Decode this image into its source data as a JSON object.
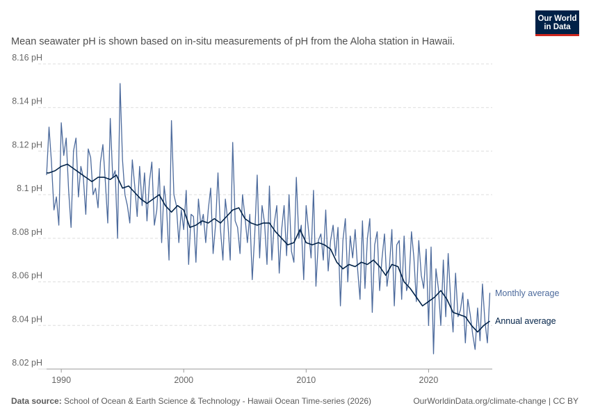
{
  "logo": {
    "line1": "Our World",
    "line2": "in Data"
  },
  "subtitle": "Mean seawater pH is shown based on in-situ measurements of pH from the Aloha station in Hawaii.",
  "footer": {
    "source_label": "Data source:",
    "source_text": "School of Ocean & Earth Science & Technology - Hawaii Ocean Time-series (2026)",
    "url_license": "OurWorldinData.org/climate-change | CC BY"
  },
  "colors": {
    "monthly": "#4c6a9c",
    "annual": "#002147",
    "grid": "#dddddd"
  },
  "chart_data": {
    "type": "line",
    "xlim": [
      1988.8,
      2025.2
    ],
    "ylim": [
      8.02,
      8.16
    ],
    "y_ticks": [
      8.02,
      8.04,
      8.06,
      8.08,
      8.1,
      8.12,
      8.14,
      8.16
    ],
    "y_tick_labels": [
      "8.02 pH",
      "8.04 pH",
      "8.06 pH",
      "8.08 pH",
      "8.1 pH",
      "8.12 pH",
      "8.14 pH",
      "8.16 pH"
    ],
    "x_ticks": [
      1990,
      2000,
      2010,
      2020
    ],
    "x_tick_labels": [
      "1990",
      "2000",
      "2010",
      "2020"
    ],
    "grid": "horizontal dashed",
    "series": [
      {
        "name": "Monthly average",
        "x": [
          1988.8,
          1989.0,
          1989.2,
          1989.4,
          1989.6,
          1989.8,
          1990.0,
          1990.2,
          1990.4,
          1990.6,
          1990.8,
          1991.0,
          1991.2,
          1991.4,
          1991.6,
          1991.8,
          1992.0,
          1992.2,
          1992.4,
          1992.6,
          1992.8,
          1993.0,
          1993.2,
          1993.4,
          1993.6,
          1993.8,
          1994.0,
          1994.2,
          1994.4,
          1994.6,
          1994.8,
          1995.0,
          1995.2,
          1995.4,
          1995.6,
          1995.8,
          1996.0,
          1996.2,
          1996.4,
          1996.6,
          1996.8,
          1997.0,
          1997.2,
          1997.4,
          1997.6,
          1997.8,
          1998.0,
          1998.2,
          1998.4,
          1998.6,
          1998.8,
          1999.0,
          1999.2,
          1999.4,
          1999.6,
          1999.8,
          2000.0,
          2000.2,
          2000.4,
          2000.6,
          2000.8,
          2001.0,
          2001.2,
          2001.4,
          2001.6,
          2001.8,
          2002.0,
          2002.2,
          2002.4,
          2002.6,
          2002.8,
          2003.0,
          2003.2,
          2003.4,
          2003.6,
          2003.8,
          2004.0,
          2004.2,
          2004.4,
          2004.6,
          2004.8,
          2005.0,
          2005.2,
          2005.4,
          2005.6,
          2005.8,
          2006.0,
          2006.2,
          2006.4,
          2006.6,
          2006.8,
          2007.0,
          2007.2,
          2007.4,
          2007.6,
          2007.8,
          2008.0,
          2008.2,
          2008.4,
          2008.6,
          2008.8,
          2009.0,
          2009.2,
          2009.4,
          2009.6,
          2009.8,
          2010.0,
          2010.2,
          2010.4,
          2010.6,
          2010.8,
          2011.0,
          2011.2,
          2011.4,
          2011.6,
          2011.8,
          2012.0,
          2012.2,
          2012.4,
          2012.6,
          2012.8,
          2013.0,
          2013.2,
          2013.4,
          2013.6,
          2013.8,
          2014.0,
          2014.2,
          2014.4,
          2014.6,
          2014.8,
          2015.0,
          2015.2,
          2015.4,
          2015.6,
          2015.8,
          2016.0,
          2016.2,
          2016.4,
          2016.6,
          2016.8,
          2017.0,
          2017.2,
          2017.4,
          2017.6,
          2017.8,
          2018.0,
          2018.2,
          2018.4,
          2018.6,
          2018.8,
          2019.0,
          2019.2,
          2019.4,
          2019.6,
          2019.8,
          2020.0,
          2020.2,
          2020.4,
          2020.6,
          2020.8,
          2021.0,
          2021.2,
          2021.4,
          2021.6,
          2021.8,
          2022.0,
          2022.2,
          2022.4,
          2022.6,
          2022.8,
          2023.0,
          2023.2,
          2023.4,
          2023.6,
          2023.8,
          2024.0,
          2024.2,
          2024.4,
          2024.6,
          2024.8,
          2025.0
        ],
        "y": [
          8.109,
          8.131,
          8.115,
          8.093,
          8.099,
          8.086,
          8.133,
          8.118,
          8.126,
          8.102,
          8.085,
          8.12,
          8.126,
          8.099,
          8.113,
          8.108,
          8.091,
          8.121,
          8.117,
          8.1,
          8.103,
          8.094,
          8.115,
          8.123,
          8.106,
          8.087,
          8.135,
          8.108,
          8.111,
          8.08,
          8.151,
          8.116,
          8.1,
          8.095,
          8.087,
          8.116,
          8.104,
          8.09,
          8.113,
          8.095,
          8.11,
          8.088,
          8.106,
          8.115,
          8.086,
          8.093,
          8.112,
          8.078,
          8.104,
          8.094,
          8.07,
          8.134,
          8.1,
          8.095,
          8.078,
          8.093,
          8.084,
          8.102,
          8.068,
          8.091,
          8.09,
          8.069,
          8.098,
          8.086,
          8.091,
          8.078,
          8.093,
          8.103,
          8.073,
          8.086,
          8.11,
          8.084,
          8.07,
          8.098,
          8.088,
          8.07,
          8.124,
          8.088,
          8.085,
          8.073,
          8.1,
          8.09,
          8.078,
          8.091,
          8.061,
          8.082,
          8.109,
          8.071,
          8.095,
          8.087,
          8.068,
          8.104,
          8.07,
          8.087,
          8.095,
          8.064,
          8.084,
          8.095,
          8.072,
          8.1,
          8.074,
          8.069,
          8.108,
          8.08,
          8.086,
          8.061,
          8.095,
          8.083,
          8.071,
          8.102,
          8.058,
          8.079,
          8.082,
          8.07,
          8.093,
          8.065,
          8.079,
          8.086,
          8.072,
          8.085,
          8.049,
          8.079,
          8.089,
          8.06,
          8.081,
          8.071,
          8.084,
          8.066,
          8.052,
          8.088,
          8.057,
          8.08,
          8.089,
          8.046,
          8.077,
          8.083,
          8.056,
          8.071,
          8.082,
          8.058,
          8.067,
          8.084,
          8.049,
          8.077,
          8.079,
          8.052,
          8.081,
          8.056,
          8.06,
          8.083,
          8.071,
          8.051,
          8.079,
          8.063,
          8.057,
          8.075,
          8.04,
          8.076,
          8.027,
          8.066,
          8.057,
          8.04,
          8.07,
          8.044,
          8.073,
          8.052,
          8.037,
          8.064,
          8.044,
          8.047,
          8.055,
          8.032,
          8.052,
          8.045,
          8.036,
          8.029,
          8.048,
          8.033,
          8.059,
          8.042,
          8.032,
          8.055
        ]
      },
      {
        "name": "Annual average",
        "x": [
          1988.8,
          1989.0,
          1989.5,
          1990.0,
          1990.5,
          1991.0,
          1991.5,
          1992.0,
          1992.5,
          1993.0,
          1993.5,
          1994.0,
          1994.5,
          1995.0,
          1995.5,
          1996.0,
          1996.5,
          1997.0,
          1997.5,
          1998.0,
          1998.5,
          1999.0,
          1999.5,
          2000.0,
          2000.5,
          2001.0,
          2001.5,
          2002.0,
          2002.5,
          2003.0,
          2003.5,
          2004.0,
          2004.5,
          2005.0,
          2005.5,
          2006.0,
          2006.5,
          2007.0,
          2007.5,
          2008.0,
          2008.5,
          2009.0,
          2009.5,
          2010.0,
          2010.5,
          2011.0,
          2011.5,
          2012.0,
          2012.5,
          2013.0,
          2013.5,
          2014.0,
          2014.5,
          2015.0,
          2015.5,
          2016.0,
          2016.5,
          2017.0,
          2017.5,
          2018.0,
          2018.5,
          2019.0,
          2019.5,
          2020.0,
          2020.5,
          2021.0,
          2021.5,
          2022.0,
          2022.5,
          2023.0,
          2023.5,
          2024.0,
          2024.5,
          2025.0
        ],
        "y": [
          8.11,
          8.11,
          8.111,
          8.113,
          8.114,
          8.112,
          8.11,
          8.108,
          8.106,
          8.108,
          8.108,
          8.107,
          8.109,
          8.103,
          8.104,
          8.101,
          8.098,
          8.096,
          8.098,
          8.1,
          8.095,
          8.092,
          8.095,
          8.093,
          8.085,
          8.086,
          8.088,
          8.087,
          8.089,
          8.087,
          8.09,
          8.093,
          8.094,
          8.089,
          8.087,
          8.086,
          8.087,
          8.087,
          8.083,
          8.08,
          8.077,
          8.078,
          8.084,
          8.078,
          8.077,
          8.078,
          8.077,
          8.075,
          8.069,
          8.066,
          8.068,
          8.067,
          8.069,
          8.068,
          8.07,
          8.067,
          8.063,
          8.068,
          8.067,
          8.06,
          8.057,
          8.053,
          8.049,
          8.051,
          8.053,
          8.056,
          8.052,
          8.046,
          8.045,
          8.044,
          8.04,
          8.037,
          8.04,
          8.042
        ]
      }
    ]
  }
}
